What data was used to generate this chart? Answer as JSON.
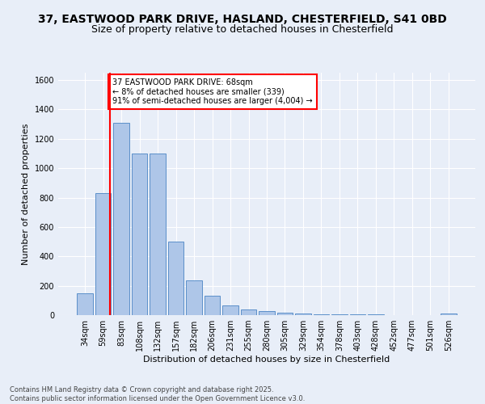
{
  "title_line1": "37, EASTWOOD PARK DRIVE, HASLAND, CHESTERFIELD, S41 0BD",
  "title_line2": "Size of property relative to detached houses in Chesterfield",
  "xlabel": "Distribution of detached houses by size in Chesterfield",
  "ylabel": "Number of detached properties",
  "bar_labels": [
    "34sqm",
    "59sqm",
    "83sqm",
    "108sqm",
    "132sqm",
    "157sqm",
    "182sqm",
    "206sqm",
    "231sqm",
    "255sqm",
    "280sqm",
    "305sqm",
    "329sqm",
    "354sqm",
    "378sqm",
    "403sqm",
    "428sqm",
    "452sqm",
    "477sqm",
    "501sqm",
    "526sqm"
  ],
  "bar_values": [
    150,
    830,
    1310,
    1100,
    1100,
    500,
    235,
    130,
    65,
    38,
    25,
    18,
    12,
    5,
    5,
    3,
    3,
    2,
    2,
    1,
    10
  ],
  "bar_color": "#aec6e8",
  "bar_edge_color": "#5b8fc9",
  "vline_color": "red",
  "vline_pos": 1.375,
  "ylim": [
    0,
    1650
  ],
  "yticks": [
    0,
    200,
    400,
    600,
    800,
    1000,
    1200,
    1400,
    1600
  ],
  "annotation_text": "37 EASTWOOD PARK DRIVE: 68sqm\n← 8% of detached houses are smaller (339)\n91% of semi-detached houses are larger (4,004) →",
  "annotation_box_color": "white",
  "annotation_box_edge": "red",
  "footer": "Contains HM Land Registry data © Crown copyright and database right 2025.\nContains public sector information licensed under the Open Government Licence v3.0.",
  "bg_color": "#e8eef8",
  "plot_bg_color": "#e8eef8",
  "grid_color": "white",
  "title_fontsize": 10,
  "subtitle_fontsize": 9,
  "xlabel_fontsize": 8,
  "ylabel_fontsize": 8,
  "tick_fontsize": 7
}
